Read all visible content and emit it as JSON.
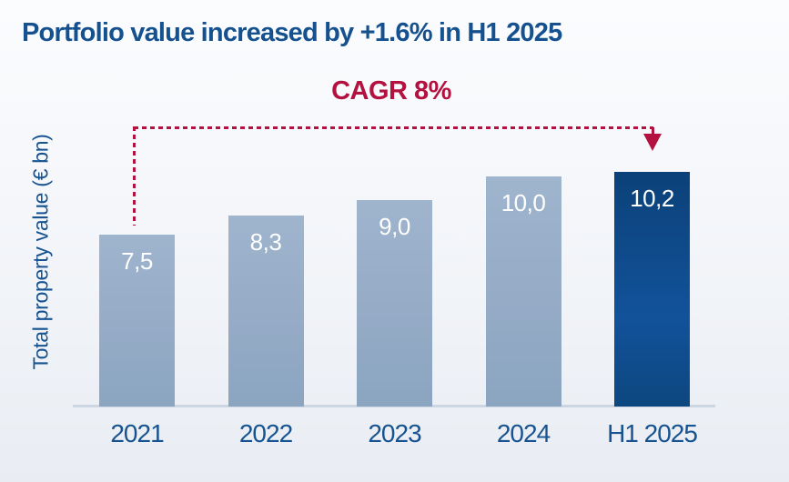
{
  "title": {
    "text": "Portfolio value increased by +1.6% in H1 2025",
    "color": "#15518f"
  },
  "y_axis": {
    "label": "Total property value (€ bn)"
  },
  "annotation": {
    "cagr_label": "CAGR 8%",
    "color": "#b31240",
    "from_category": "2021",
    "to_category": "H1 2025",
    "arrow_style": "dashed, arrowhead down over H1 2025 bar"
  },
  "chart_data": {
    "type": "bar",
    "title": "Portfolio value increased by +1.6% in H1 2025",
    "xlabel": "",
    "ylabel": "Total property value (€ bn)",
    "categories": [
      "2021",
      "2022",
      "2023",
      "2024",
      "H1 2025"
    ],
    "values": [
      7.5,
      8.3,
      9.0,
      10.0,
      10.2
    ],
    "value_labels": [
      "7,5",
      "8,3",
      "9,0",
      "10,0",
      "10,2"
    ],
    "highlight_index": 4,
    "ylim": [
      0,
      11
    ],
    "grid": false,
    "legend": false,
    "annotations": [
      {
        "type": "cagr-arrow",
        "label": "CAGR 8%",
        "from": "2021",
        "to": "H1 2025"
      }
    ],
    "colors": {
      "bar_light_top": "#9fb4cd",
      "bar_light_bottom": "#8ba5c0",
      "bar_highlight_top": "#0b4178",
      "bar_highlight_mid": "#12529a",
      "bar_highlight_bottom": "#0d4780",
      "value_label_text": "#ffffff",
      "axis_line": "#cbd6e2",
      "title_text": "#15518f",
      "tick_label_text": "#175390",
      "cagr_accent": "#b31240"
    }
  }
}
